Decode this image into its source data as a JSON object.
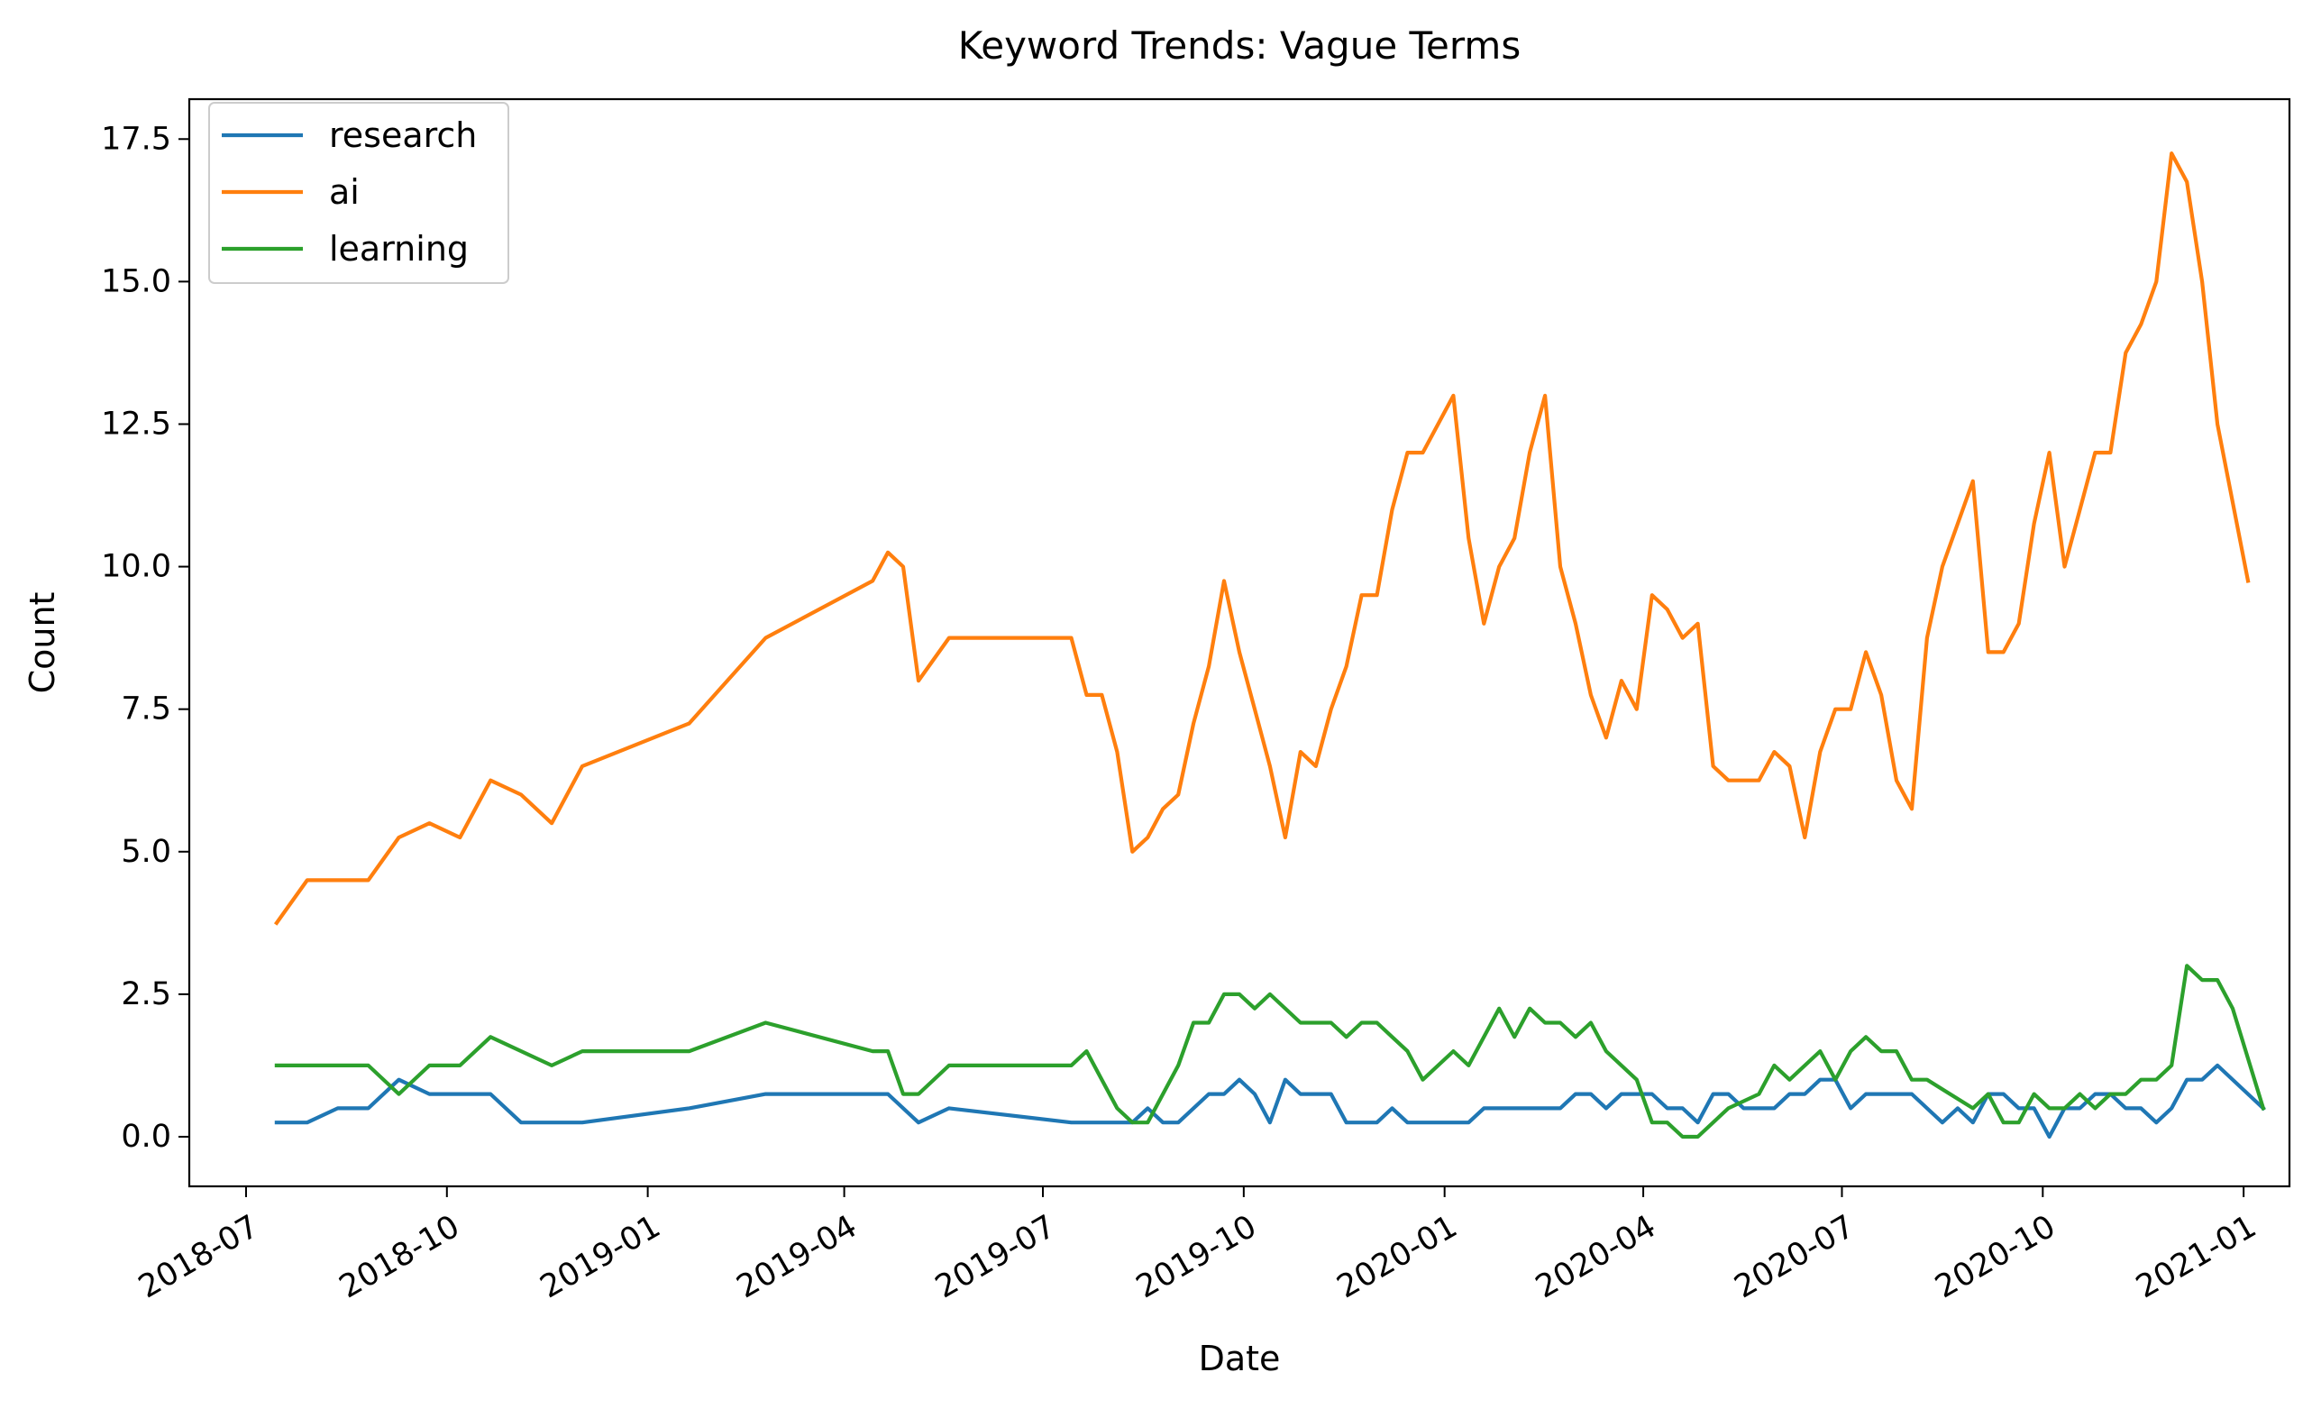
{
  "chart_data": {
    "type": "line",
    "title": "Keyword Trends: Vague Terms",
    "xlabel": "Date",
    "ylabel": "Count",
    "x_ticks": [
      "2018-07",
      "2018-10",
      "2019-01",
      "2019-04",
      "2019-07",
      "2019-10",
      "2020-01",
      "2020-04",
      "2020-07",
      "2020-10",
      "2021-01"
    ],
    "y_ticks": [
      "0.0",
      "2.5",
      "5.0",
      "7.5",
      "10.0",
      "12.5",
      "15.0",
      "17.5"
    ],
    "xlim": [
      "2018-06-05",
      "2021-01-22"
    ],
    "ylim": [
      -0.87,
      18.2
    ],
    "grid": false,
    "legend_position": "top-left",
    "series": [
      {
        "name": "research",
        "color": "#1f77b4",
        "points": [
          [
            "2018-07-15",
            0.25
          ],
          [
            "2018-07-29",
            0.25
          ],
          [
            "2018-08-12",
            0.5
          ],
          [
            "2018-08-26",
            0.5
          ],
          [
            "2018-09-09",
            1.0
          ],
          [
            "2018-09-23",
            0.75
          ],
          [
            "2018-10-07",
            0.75
          ],
          [
            "2018-10-21",
            0.75
          ],
          [
            "2018-11-04",
            0.25
          ],
          [
            "2018-11-18",
            0.25
          ],
          [
            "2018-12-02",
            0.25
          ],
          [
            "2019-01-20",
            0.5
          ],
          [
            "2019-02-24",
            0.75
          ],
          [
            "2019-03-31",
            0.75
          ],
          [
            "2019-04-21",
            0.75
          ],
          [
            "2019-05-05",
            0.25
          ],
          [
            "2019-05-19",
            0.5
          ],
          [
            "2019-07-14",
            0.25
          ],
          [
            "2019-08-11",
            0.25
          ],
          [
            "2019-08-18",
            0.5
          ],
          [
            "2019-08-25",
            0.25
          ],
          [
            "2019-09-01",
            0.25
          ],
          [
            "2019-09-15",
            0.75
          ],
          [
            "2019-09-22",
            0.75
          ],
          [
            "2019-09-29",
            1.0
          ],
          [
            "2019-10-06",
            0.75
          ],
          [
            "2019-10-13",
            0.25
          ],
          [
            "2019-10-20",
            1.0
          ],
          [
            "2019-10-27",
            0.75
          ],
          [
            "2019-11-10",
            0.75
          ],
          [
            "2019-11-17",
            0.25
          ],
          [
            "2019-12-01",
            0.25
          ],
          [
            "2019-12-08",
            0.5
          ],
          [
            "2019-12-15",
            0.25
          ],
          [
            "2020-01-12",
            0.25
          ],
          [
            "2020-01-19",
            0.5
          ],
          [
            "2020-02-23",
            0.5
          ],
          [
            "2020-03-01",
            0.75
          ],
          [
            "2020-03-08",
            0.75
          ],
          [
            "2020-03-15",
            0.5
          ],
          [
            "2020-03-22",
            0.75
          ],
          [
            "2020-04-05",
            0.75
          ],
          [
            "2020-04-12",
            0.5
          ],
          [
            "2020-04-19",
            0.5
          ],
          [
            "2020-04-26",
            0.25
          ],
          [
            "2020-05-03",
            0.75
          ],
          [
            "2020-05-10",
            0.75
          ],
          [
            "2020-05-17",
            0.5
          ],
          [
            "2020-05-31",
            0.5
          ],
          [
            "2020-06-07",
            0.75
          ],
          [
            "2020-06-14",
            0.75
          ],
          [
            "2020-06-21",
            1.0
          ],
          [
            "2020-06-28",
            1.0
          ],
          [
            "2020-07-05",
            0.5
          ],
          [
            "2020-07-12",
            0.75
          ],
          [
            "2020-08-02",
            0.75
          ],
          [
            "2020-08-09",
            0.5
          ],
          [
            "2020-08-16",
            0.25
          ],
          [
            "2020-08-23",
            0.5
          ],
          [
            "2020-08-30",
            0.25
          ],
          [
            "2020-09-06",
            0.75
          ],
          [
            "2020-09-13",
            0.75
          ],
          [
            "2020-09-20",
            0.5
          ],
          [
            "2020-09-27",
            0.5
          ],
          [
            "2020-10-04",
            0.0
          ],
          [
            "2020-10-11",
            0.5
          ],
          [
            "2020-10-18",
            0.5
          ],
          [
            "2020-10-25",
            0.75
          ],
          [
            "2020-11-01",
            0.75
          ],
          [
            "2020-11-08",
            0.5
          ],
          [
            "2020-11-15",
            0.5
          ],
          [
            "2020-11-22",
            0.25
          ],
          [
            "2020-11-29",
            0.5
          ],
          [
            "2020-12-06",
            1.0
          ],
          [
            "2020-12-13",
            1.0
          ],
          [
            "2020-12-20",
            1.25
          ],
          [
            "2021-01-03",
            0.75
          ],
          [
            "2021-01-10",
            0.5
          ]
        ]
      },
      {
        "name": "ai",
        "color": "#ff7f0e",
        "points": [
          [
            "2018-07-15",
            3.75
          ],
          [
            "2018-07-29",
            4.5
          ],
          [
            "2018-08-26",
            4.5
          ],
          [
            "2018-09-09",
            5.25
          ],
          [
            "2018-09-23",
            5.5
          ],
          [
            "2018-10-07",
            5.25
          ],
          [
            "2018-10-21",
            6.25
          ],
          [
            "2018-11-04",
            6.0
          ],
          [
            "2018-11-18",
            5.5
          ],
          [
            "2018-12-02",
            6.5
          ],
          [
            "2019-01-20",
            7.25
          ],
          [
            "2019-02-24",
            8.75
          ],
          [
            "2019-04-14",
            9.75
          ],
          [
            "2019-04-21",
            10.25
          ],
          [
            "2019-04-28",
            10.0
          ],
          [
            "2019-05-05",
            8.0
          ],
          [
            "2019-05-19",
            8.75
          ],
          [
            "2019-07-14",
            8.75
          ],
          [
            "2019-07-21",
            7.75
          ],
          [
            "2019-07-28",
            7.75
          ],
          [
            "2019-08-04",
            6.75
          ],
          [
            "2019-08-11",
            5.0
          ],
          [
            "2019-08-18",
            5.25
          ],
          [
            "2019-08-25",
            5.75
          ],
          [
            "2019-09-01",
            6.0
          ],
          [
            "2019-09-08",
            7.25
          ],
          [
            "2019-09-15",
            8.25
          ],
          [
            "2019-09-22",
            9.75
          ],
          [
            "2019-09-29",
            8.5
          ],
          [
            "2019-10-06",
            7.5
          ],
          [
            "2019-10-13",
            6.5
          ],
          [
            "2019-10-20",
            5.25
          ],
          [
            "2019-10-27",
            6.75
          ],
          [
            "2019-11-03",
            6.5
          ],
          [
            "2019-11-10",
            7.5
          ],
          [
            "2019-11-17",
            8.25
          ],
          [
            "2019-11-24",
            9.5
          ],
          [
            "2019-12-01",
            9.5
          ],
          [
            "2019-12-08",
            11.0
          ],
          [
            "2019-12-15",
            12.0
          ],
          [
            "2019-12-22",
            12.0
          ],
          [
            "2020-01-05",
            13.0
          ],
          [
            "2020-01-12",
            10.5
          ],
          [
            "2020-01-19",
            9.0
          ],
          [
            "2020-01-26",
            10.0
          ],
          [
            "2020-02-02",
            10.5
          ],
          [
            "2020-02-09",
            12.0
          ],
          [
            "2020-02-16",
            13.0
          ],
          [
            "2020-02-23",
            10.0
          ],
          [
            "2020-03-01",
            9.0
          ],
          [
            "2020-03-08",
            7.75
          ],
          [
            "2020-03-15",
            7.0
          ],
          [
            "2020-03-22",
            8.0
          ],
          [
            "2020-03-29",
            7.5
          ],
          [
            "2020-04-05",
            9.5
          ],
          [
            "2020-04-12",
            9.25
          ],
          [
            "2020-04-19",
            8.75
          ],
          [
            "2020-04-26",
            9.0
          ],
          [
            "2020-05-03",
            6.5
          ],
          [
            "2020-05-10",
            6.25
          ],
          [
            "2020-05-24",
            6.25
          ],
          [
            "2020-05-31",
            6.75
          ],
          [
            "2020-06-07",
            6.5
          ],
          [
            "2020-06-14",
            5.25
          ],
          [
            "2020-06-21",
            6.75
          ],
          [
            "2020-06-28",
            7.5
          ],
          [
            "2020-07-05",
            7.5
          ],
          [
            "2020-07-12",
            8.5
          ],
          [
            "2020-07-19",
            7.75
          ],
          [
            "2020-07-26",
            6.25
          ],
          [
            "2020-08-02",
            5.75
          ],
          [
            "2020-08-09",
            8.75
          ],
          [
            "2020-08-16",
            10.0
          ],
          [
            "2020-08-23",
            10.75
          ],
          [
            "2020-08-30",
            11.5
          ],
          [
            "2020-09-06",
            8.5
          ],
          [
            "2020-09-13",
            8.5
          ],
          [
            "2020-09-20",
            9.0
          ],
          [
            "2020-09-27",
            10.75
          ],
          [
            "2020-10-04",
            12.0
          ],
          [
            "2020-10-11",
            10.0
          ],
          [
            "2020-10-18",
            11.0
          ],
          [
            "2020-10-25",
            12.0
          ],
          [
            "2020-11-01",
            12.0
          ],
          [
            "2020-11-08",
            13.75
          ],
          [
            "2020-11-15",
            14.25
          ],
          [
            "2020-11-22",
            15.0
          ],
          [
            "2020-11-29",
            17.25
          ],
          [
            "2020-12-06",
            16.75
          ],
          [
            "2020-12-13",
            15.0
          ],
          [
            "2020-12-20",
            12.5
          ],
          [
            "2021-01-03",
            9.75
          ]
        ]
      },
      {
        "name": "learning",
        "color": "#2ca02c",
        "points": [
          [
            "2018-07-15",
            1.25
          ],
          [
            "2018-08-26",
            1.25
          ],
          [
            "2018-09-09",
            0.75
          ],
          [
            "2018-09-23",
            1.25
          ],
          [
            "2018-10-07",
            1.25
          ],
          [
            "2018-10-21",
            1.75
          ],
          [
            "2018-11-18",
            1.25
          ],
          [
            "2018-12-02",
            1.5
          ],
          [
            "2019-01-20",
            1.5
          ],
          [
            "2019-02-24",
            2.0
          ],
          [
            "2019-04-14",
            1.5
          ],
          [
            "2019-04-21",
            1.5
          ],
          [
            "2019-04-28",
            0.75
          ],
          [
            "2019-05-05",
            0.75
          ],
          [
            "2019-05-19",
            1.25
          ],
          [
            "2019-07-14",
            1.25
          ],
          [
            "2019-07-21",
            1.5
          ],
          [
            "2019-07-28",
            1.0
          ],
          [
            "2019-08-04",
            0.5
          ],
          [
            "2019-08-11",
            0.25
          ],
          [
            "2019-08-18",
            0.25
          ],
          [
            "2019-08-25",
            0.75
          ],
          [
            "2019-09-01",
            1.25
          ],
          [
            "2019-09-08",
            2.0
          ],
          [
            "2019-09-15",
            2.0
          ],
          [
            "2019-09-22",
            2.5
          ],
          [
            "2019-09-29",
            2.5
          ],
          [
            "2019-10-06",
            2.25
          ],
          [
            "2019-10-13",
            2.5
          ],
          [
            "2019-10-27",
            2.0
          ],
          [
            "2019-11-10",
            2.0
          ],
          [
            "2019-11-17",
            1.75
          ],
          [
            "2019-11-24",
            2.0
          ],
          [
            "2019-12-01",
            2.0
          ],
          [
            "2019-12-08",
            1.75
          ],
          [
            "2019-12-15",
            1.5
          ],
          [
            "2019-12-22",
            1.0
          ],
          [
            "2020-01-05",
            1.5
          ],
          [
            "2020-01-12",
            1.25
          ],
          [
            "2020-01-19",
            1.75
          ],
          [
            "2020-01-26",
            2.25
          ],
          [
            "2020-02-02",
            1.75
          ],
          [
            "2020-02-09",
            2.25
          ],
          [
            "2020-02-16",
            2.0
          ],
          [
            "2020-02-23",
            2.0
          ],
          [
            "2020-03-01",
            1.75
          ],
          [
            "2020-03-08",
            2.0
          ],
          [
            "2020-03-15",
            1.5
          ],
          [
            "2020-03-29",
            1.0
          ],
          [
            "2020-04-05",
            0.25
          ],
          [
            "2020-04-12",
            0.25
          ],
          [
            "2020-04-19",
            0.0
          ],
          [
            "2020-04-26",
            0.0
          ],
          [
            "2020-05-10",
            0.5
          ],
          [
            "2020-05-24",
            0.75
          ],
          [
            "2020-05-31",
            1.25
          ],
          [
            "2020-06-07",
            1.0
          ],
          [
            "2020-06-21",
            1.5
          ],
          [
            "2020-06-28",
            1.0
          ],
          [
            "2020-07-05",
            1.5
          ],
          [
            "2020-07-12",
            1.75
          ],
          [
            "2020-07-19",
            1.5
          ],
          [
            "2020-07-26",
            1.5
          ],
          [
            "2020-08-02",
            1.0
          ],
          [
            "2020-08-09",
            1.0
          ],
          [
            "2020-08-30",
            0.5
          ],
          [
            "2020-09-06",
            0.75
          ],
          [
            "2020-09-13",
            0.25
          ],
          [
            "2020-09-20",
            0.25
          ],
          [
            "2020-09-27",
            0.75
          ],
          [
            "2020-10-04",
            0.5
          ],
          [
            "2020-10-11",
            0.5
          ],
          [
            "2020-10-18",
            0.75
          ],
          [
            "2020-10-25",
            0.5
          ],
          [
            "2020-11-01",
            0.75
          ],
          [
            "2020-11-08",
            0.75
          ],
          [
            "2020-11-15",
            1.0
          ],
          [
            "2020-11-22",
            1.0
          ],
          [
            "2020-11-29",
            1.25
          ],
          [
            "2020-12-06",
            3.0
          ],
          [
            "2020-12-13",
            2.75
          ],
          [
            "2020-12-20",
            2.75
          ],
          [
            "2020-12-27",
            2.25
          ],
          [
            "2021-01-10",
            0.5
          ]
        ]
      }
    ]
  }
}
